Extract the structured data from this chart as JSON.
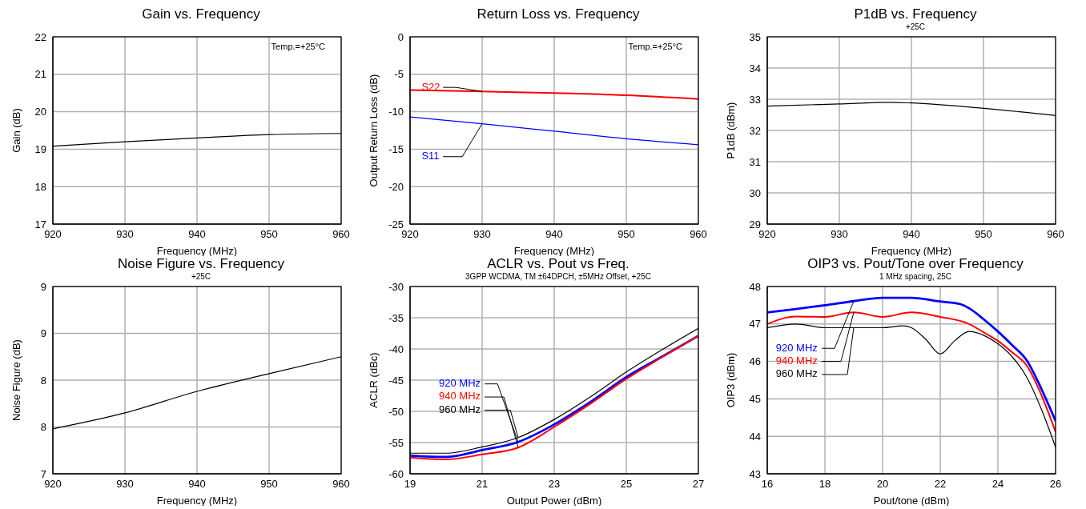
{
  "chart_data": [
    {
      "type": "line",
      "title": "Gain vs. Frequency",
      "xlabel": "Frequency (MHz)",
      "ylabel": "Gain (dB)",
      "annotations": [
        "Temp.=+25°C"
      ],
      "x": [
        920,
        930,
        940,
        950,
        960
      ],
      "series": [
        {
          "color": "#000000",
          "values": [
            19.08,
            19.2,
            19.3,
            19.39,
            19.42
          ]
        }
      ],
      "xlim": [
        920,
        960
      ],
      "xticks": [
        920,
        930,
        940,
        950,
        960
      ],
      "ylim": [
        17,
        22
      ],
      "yticks": [
        17,
        18,
        19,
        20,
        21,
        22
      ],
      "grid": true
    },
    {
      "type": "line",
      "title": "Return Loss vs. Frequency",
      "xlabel": "Frequency (MHz)",
      "ylabel": "Output Return Loss (dB)",
      "annotations": [
        "Temp.=+25°C"
      ],
      "x": [
        920,
        930,
        940,
        950,
        960
      ],
      "series": [
        {
          "name": "S22",
          "color": "#ff0000",
          "values": [
            -7.1,
            -7.3,
            -7.5,
            -7.8,
            -8.3
          ]
        },
        {
          "name": "S11",
          "color": "#0000ff",
          "values": [
            -10.7,
            -11.6,
            -12.6,
            -13.6,
            -14.4
          ]
        }
      ],
      "xlim": [
        920,
        960
      ],
      "xticks": [
        920,
        930,
        940,
        950,
        960
      ],
      "ylim": [
        -25,
        0
      ],
      "yticks": [
        -25,
        -20,
        -15,
        -10,
        -5,
        0
      ],
      "grid": true
    },
    {
      "type": "line",
      "title": "P1dB vs. Frequency",
      "subtitle": "+25C",
      "xlabel": "Frequency (MHz)",
      "ylabel": "P1dB (dBm)",
      "x": [
        920,
        930,
        937,
        940,
        950,
        960
      ],
      "series": [
        {
          "color": "#000000",
          "values": [
            32.78,
            32.85,
            32.9,
            32.88,
            32.71,
            32.48
          ]
        }
      ],
      "xlim": [
        920,
        960
      ],
      "xticks": [
        920,
        930,
        940,
        950,
        960
      ],
      "ylim": [
        29,
        35
      ],
      "yticks": [
        29,
        30,
        31,
        32,
        33,
        34,
        35
      ],
      "grid": true
    },
    {
      "type": "line",
      "title": "Noise Figure vs. Frequency",
      "subtitle": "+25C",
      "xlabel": "Frequency (MHz)",
      "ylabel": "Noise Figure (dB)",
      "x": [
        920,
        930,
        940,
        950,
        960
      ],
      "series": [
        {
          "color": "#000000",
          "values": [
            7.48,
            7.65,
            7.88,
            8.07,
            8.25
          ]
        }
      ],
      "xlim": [
        920,
        960
      ],
      "xticks": [
        920,
        930,
        940,
        950,
        960
      ],
      "ylim": [
        7,
        9
      ],
      "yticks": [
        7,
        {
          "value": 7.5,
          "label": "8"
        },
        8,
        {
          "value": 8.5,
          "label": "9"
        },
        9
      ],
      "grid": true
    },
    {
      "type": "line",
      "title": "ACLR vs. Pout vs Freq.",
      "subtitle": "3GPP WCDMA, TM ±64DPCH, ±5MHz Offset, +25C",
      "xlabel": "Output Power (dBm)",
      "ylabel": "ACLR (dBc)",
      "x": [
        19,
        20,
        21,
        22,
        23,
        24,
        25,
        26,
        27
      ],
      "series": [
        {
          "name": "920 MHz",
          "color": "#0000ff",
          "values": [
            -57.1,
            -57.3,
            -56.2,
            -54.9,
            -52.1,
            -48.5,
            -44.5,
            -41.2,
            -37.9
          ]
        },
        {
          "name": "940 MHz",
          "color": "#ff0000",
          "values": [
            -57.4,
            -57.7,
            -56.9,
            -55.8,
            -52.5,
            -48.8,
            -44.8,
            -41.3,
            -37.9
          ]
        },
        {
          "name": "960 MHz",
          "color": "#000000",
          "values": [
            -56.7,
            -56.7,
            -55.7,
            -54.2,
            -51.3,
            -47.7,
            -43.7,
            -40.1,
            -36.7
          ]
        }
      ],
      "xlim": [
        19,
        27
      ],
      "xticks": [
        19,
        21,
        23,
        25,
        27
      ],
      "ylim": [
        -60,
        -30
      ],
      "yticks": [
        -60,
        -55,
        -50,
        -45,
        -40,
        -35,
        -30
      ],
      "grid": true
    },
    {
      "type": "line",
      "title": "OIP3 vs. Pout/Tone over Frequency",
      "subtitle": "1 MHz spacing, 25C",
      "xlabel": "Pout/tone (dBm)",
      "ylabel": "OIP3 (dBm)",
      "series": [
        {
          "name": "920 MHz",
          "color": "#0000ff",
          "x": [
            16,
            17,
            18,
            19,
            20,
            21,
            22,
            22.7,
            23,
            23.5,
            24,
            24.5,
            25,
            25.5,
            26
          ],
          "values": [
            47.31,
            47.4,
            47.5,
            47.61,
            47.7,
            47.7,
            47.6,
            47.53,
            47.42,
            47.13,
            46.8,
            46.43,
            46.03,
            45.28,
            44.41
          ]
        },
        {
          "name": "940 MHz",
          "color": "#ff0000",
          "x": [
            16,
            17,
            18,
            19,
            20,
            21,
            22,
            23,
            23.5,
            24,
            24.5,
            25,
            25.5,
            26
          ],
          "values": [
            47.0,
            47.2,
            47.19,
            47.31,
            47.19,
            47.31,
            47.19,
            47.0,
            46.78,
            46.55,
            46.24,
            45.89,
            45.12,
            44.12
          ]
        },
        {
          "name": "960 MHz",
          "color": "#000000",
          "x": [
            16,
            17,
            18,
            19,
            20,
            20.7,
            21,
            21.5,
            22,
            22.5,
            23,
            23.5,
            24,
            24.5,
            25,
            25.5,
            26
          ],
          "values": [
            46.9,
            47.0,
            46.9,
            46.9,
            46.9,
            46.95,
            46.9,
            46.59,
            46.2,
            46.55,
            46.8,
            46.7,
            46.47,
            46.12,
            45.58,
            44.74,
            43.71
          ]
        }
      ],
      "xlim": [
        16,
        26
      ],
      "xticks": [
        16,
        18,
        20,
        22,
        24,
        26
      ],
      "ylim": [
        43,
        48
      ],
      "yticks": [
        43,
        44,
        45,
        46,
        47,
        48
      ],
      "grid": true
    }
  ]
}
